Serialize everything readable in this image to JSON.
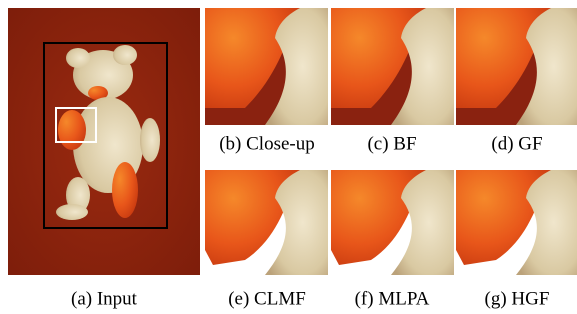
{
  "figure": {
    "panels": [
      {
        "caption": "(a) Input"
      },
      {
        "caption": "(b) Close-up"
      },
      {
        "caption": "(c) BF"
      },
      {
        "caption": "(d) GF"
      },
      {
        "caption": "(e) CLMF"
      },
      {
        "caption": "(f) MLPA"
      },
      {
        "caption": "(g) HGF"
      }
    ]
  }
}
